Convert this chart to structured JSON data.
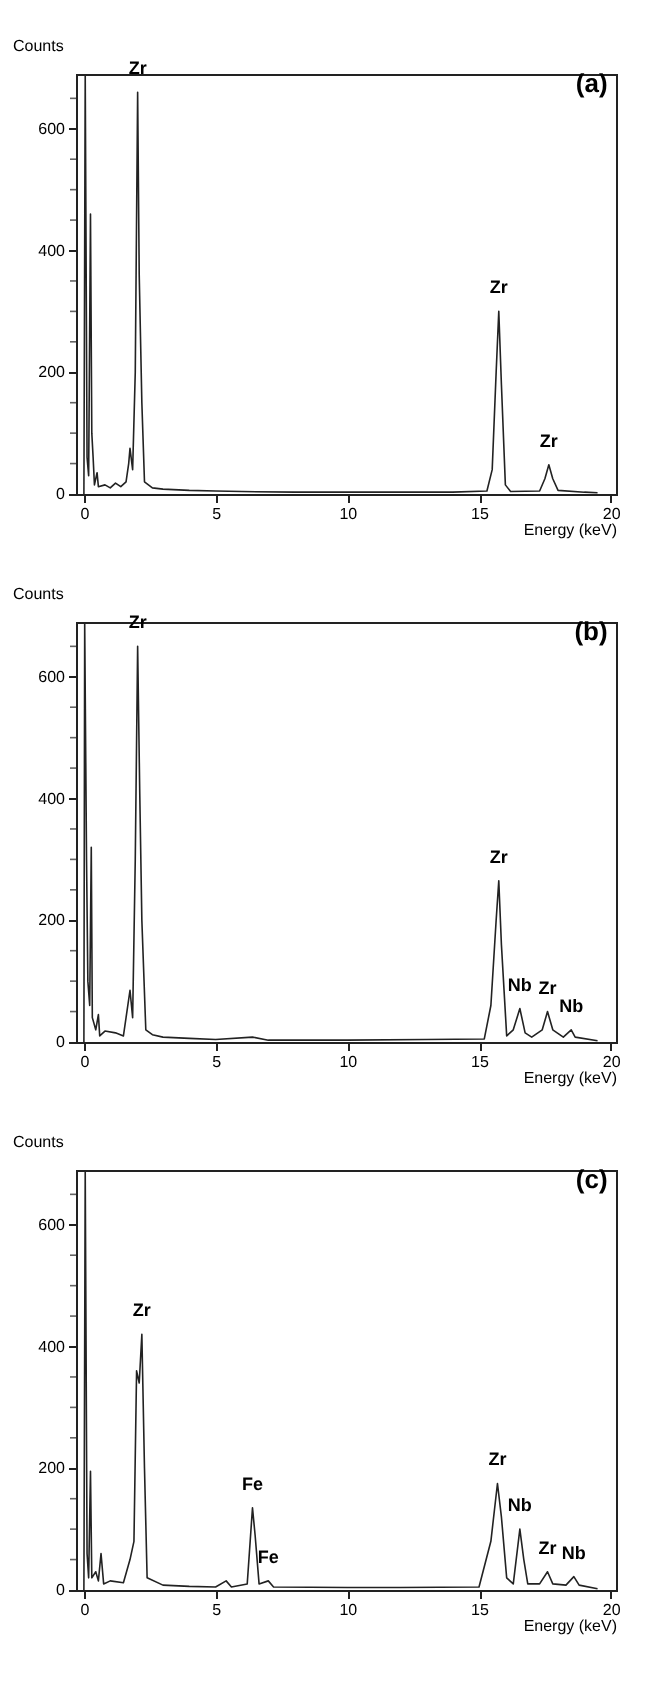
{
  "chart_data": [
    {
      "type": "line",
      "title": "(a)",
      "xlabel": "Energy (keV)",
      "ylabel": "Counts",
      "xlim": [
        -0.3,
        20.2
      ],
      "ylim": [
        0,
        690
      ],
      "xticks": [
        0,
        5,
        10,
        15,
        20
      ],
      "yticks": [
        0,
        {
          "value": 50,
          "label": null
        },
        {
          "value": 100,
          "label": null
        },
        {
          "value": 150,
          "label": null
        },
        200,
        {
          "value": 250,
          "label": null
        },
        {
          "value": 300,
          "label": null
        },
        {
          "value": 350,
          "label": null
        },
        400,
        {
          "value": 450,
          "label": null
        },
        {
          "value": 500,
          "label": null
        },
        {
          "value": 550,
          "label": null
        },
        600,
        {
          "value": 650,
          "label": null
        }
      ],
      "grid": false,
      "marker": "none",
      "line_style": "solid",
      "series": [
        {
          "color": "#222222",
          "x": [
            0.0,
            0.05,
            0.12,
            0.18,
            0.25,
            0.3,
            0.35,
            0.4,
            0.5,
            0.55,
            0.8,
            1.0,
            1.2,
            1.4,
            1.6,
            1.7,
            1.75,
            1.85,
            1.95,
            2.04,
            2.1,
            2.2,
            2.3,
            2.6,
            3,
            4,
            5,
            6,
            8,
            10,
            12,
            14,
            15.3,
            15.5,
            15.65,
            15.75,
            15.85,
            16.0,
            16.2,
            17.3,
            17.5,
            17.65,
            17.8,
            18.0,
            19,
            19.5
          ],
          "values": [
            0,
            690,
            60,
            30,
            460,
            100,
            60,
            15,
            35,
            12,
            15,
            10,
            18,
            12,
            20,
            50,
            75,
            40,
            200,
            660,
            360,
            150,
            20,
            10,
            8,
            6,
            5,
            4,
            3,
            3,
            3,
            3,
            5,
            40,
            200,
            300,
            180,
            15,
            4,
            5,
            25,
            48,
            25,
            6,
            3,
            2
          ]
        }
      ],
      "annotations": [
        {
          "text": "Zr",
          "x": 2.04,
          "y": 660
        },
        {
          "text": "Zr",
          "x": 15.75,
          "y": 300
        },
        {
          "text": "Zr",
          "x": 17.65,
          "y": 48
        }
      ]
    },
    {
      "type": "line",
      "title": "(b)",
      "xlabel": "Energy (keV)",
      "ylabel": "Counts",
      "xlim": [
        -0.3,
        20.2
      ],
      "ylim": [
        0,
        690
      ],
      "xticks": [
        0,
        5,
        10,
        15,
        20
      ],
      "yticks": [
        0,
        {
          "value": 50,
          "label": null
        },
        {
          "value": 100,
          "label": null
        },
        {
          "value": 150,
          "label": null
        },
        200,
        {
          "value": 250,
          "label": null
        },
        {
          "value": 300,
          "label": null
        },
        {
          "value": 350,
          "label": null
        },
        400,
        {
          "value": 450,
          "label": null
        },
        {
          "value": 500,
          "label": null
        },
        {
          "value": 550,
          "label": null
        },
        600,
        {
          "value": 650,
          "label": null
        }
      ],
      "grid": false,
      "marker": "none",
      "line_style": "solid",
      "series": [
        {
          "color": "#222222",
          "x": [
            0.0,
            0.03,
            0.1,
            0.15,
            0.22,
            0.28,
            0.32,
            0.45,
            0.55,
            0.6,
            0.8,
            1.2,
            1.5,
            1.75,
            1.85,
            1.95,
            2.04,
            2.12,
            2.2,
            2.35,
            2.6,
            3,
            4,
            5,
            6.4,
            7,
            10,
            13,
            15.2,
            15.45,
            15.65,
            15.75,
            15.85,
            16.05,
            16.3,
            16.55,
            16.75,
            17.0,
            17.4,
            17.6,
            17.8,
            18.2,
            18.5,
            18.65,
            19.5
          ],
          "values": [
            0,
            690,
            300,
            100,
            60,
            320,
            40,
            20,
            45,
            10,
            18,
            15,
            10,
            85,
            40,
            300,
            650,
            410,
            200,
            20,
            12,
            8,
            6,
            4,
            8,
            3,
            3,
            4,
            5,
            60,
            200,
            265,
            160,
            10,
            20,
            55,
            15,
            8,
            20,
            50,
            20,
            8,
            20,
            8,
            2
          ]
        }
      ],
      "annotations": [
        {
          "text": "Zr",
          "x": 2.04,
          "y": 650
        },
        {
          "text": "Zr",
          "x": 15.75,
          "y": 265
        },
        {
          "text": "Nb",
          "x": 16.55,
          "y": 55
        },
        {
          "text": "Zr",
          "x": 17.6,
          "y": 50
        },
        {
          "text": "Nb",
          "x": 18.5,
          "y": 20
        }
      ]
    },
    {
      "type": "line",
      "title": "(c)",
      "xlabel": "Energy (keV)",
      "ylabel": "Counts",
      "xlim": [
        -0.3,
        20.2
      ],
      "ylim": [
        0,
        690
      ],
      "xticks": [
        0,
        5,
        10,
        15,
        20
      ],
      "yticks": [
        0,
        {
          "value": 50,
          "label": null
        },
        {
          "value": 100,
          "label": null
        },
        {
          "value": 150,
          "label": null
        },
        200,
        {
          "value": 250,
          "label": null
        },
        {
          "value": 300,
          "label": null
        },
        {
          "value": 350,
          "label": null
        },
        400,
        {
          "value": 450,
          "label": null
        },
        {
          "value": 500,
          "label": null
        },
        {
          "value": 550,
          "label": null
        },
        600,
        {
          "value": 650,
          "label": null
        }
      ],
      "grid": false,
      "marker": "none",
      "line_style": "solid",
      "series": [
        {
          "color": "#222222",
          "x": [
            0.0,
            0.05,
            0.12,
            0.18,
            0.25,
            0.3,
            0.45,
            0.55,
            0.65,
            0.75,
            1.0,
            1.5,
            1.75,
            1.9,
            2.0,
            2.1,
            2.2,
            2.3,
            2.4,
            3,
            4,
            5,
            5.4,
            5.6,
            6.2,
            6.4,
            6.5,
            6.65,
            7.0,
            7.2,
            10,
            12,
            15.0,
            15.45,
            15.7,
            15.85,
            16.05,
            16.3,
            16.55,
            16.7,
            16.85,
            17.3,
            17.6,
            17.8,
            18.3,
            18.6,
            18.8,
            19.5
          ],
          "values": [
            0,
            690,
            60,
            20,
            195,
            20,
            30,
            15,
            60,
            10,
            15,
            12,
            50,
            80,
            360,
            340,
            420,
            200,
            20,
            8,
            6,
            5,
            15,
            5,
            10,
            135,
            90,
            10,
            15,
            5,
            4,
            4,
            5,
            80,
            175,
            120,
            20,
            10,
            100,
            50,
            10,
            10,
            30,
            10,
            8,
            22,
            8,
            2
          ]
        }
      ],
      "annotations": [
        {
          "text": "Zr",
          "x": 2.2,
          "y": 420
        },
        {
          "text": "Fe",
          "x": 6.4,
          "y": 135
        },
        {
          "text": "Fe",
          "x": 7.0,
          "y": 15
        },
        {
          "text": "Zr",
          "x": 15.7,
          "y": 175
        },
        {
          "text": "Nb",
          "x": 16.55,
          "y": 100
        },
        {
          "text": "Zr",
          "x": 17.6,
          "y": 30
        },
        {
          "text": "Nb",
          "x": 18.6,
          "y": 22
        }
      ]
    }
  ]
}
